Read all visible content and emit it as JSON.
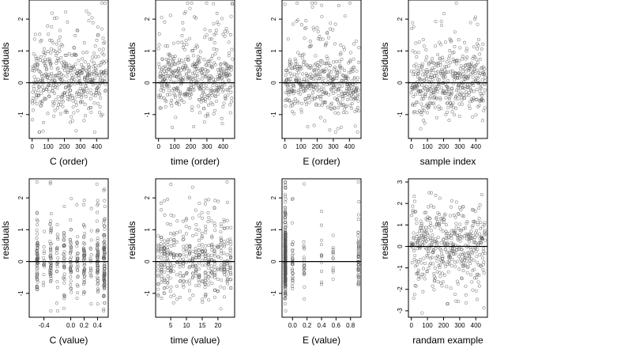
{
  "figure": {
    "background": "#ffffff",
    "point_color": "#555555",
    "line_color": "#000000"
  },
  "chart_data": [
    {
      "id": "p1",
      "type": "scatter",
      "xlabel": "C (order)",
      "ylabel": "residuals",
      "xlim": [
        -18,
        472
      ],
      "ylim": [
        -1.75,
        2.6
      ],
      "xticks": [
        0,
        100,
        200,
        300,
        400
      ],
      "xtick_labels": [
        "0",
        "100",
        "200",
        "300",
        "400"
      ],
      "yticks": [
        -1,
        0,
        1,
        2
      ],
      "ytick_labels": [
        "-1",
        "0",
        "1",
        "2"
      ],
      "hline": 0,
      "n_points": 460,
      "x_pattern": "index",
      "y_pattern": "c_order",
      "seed": 11
    },
    {
      "id": "p2",
      "type": "scatter",
      "xlabel": "time (order)",
      "ylabel": "residuals",
      "xlim": [
        -18,
        472
      ],
      "ylim": [
        -1.75,
        2.6
      ],
      "xticks": [
        0,
        100,
        200,
        300,
        400
      ],
      "xtick_labels": [
        "0",
        "100",
        "200",
        "300",
        "400"
      ],
      "yticks": [
        -1,
        0,
        1,
        2
      ],
      "ytick_labels": [
        "-1",
        "0",
        "1",
        "2"
      ],
      "hline": 0,
      "n_points": 460,
      "x_pattern": "index",
      "y_pattern": "time_order",
      "seed": 23
    },
    {
      "id": "p3",
      "type": "scatter",
      "xlabel": "E (order)",
      "ylabel": "residuals",
      "xlim": [
        -18,
        472
      ],
      "ylim": [
        -1.75,
        2.6
      ],
      "xticks": [
        0,
        100,
        200,
        300,
        400
      ],
      "xtick_labels": [
        "0",
        "100",
        "200",
        "300",
        "400"
      ],
      "yticks": [
        -1,
        0,
        1,
        2
      ],
      "ytick_labels": [
        "-1",
        "0",
        "1",
        "2"
      ],
      "hline": 0,
      "n_points": 460,
      "x_pattern": "index",
      "y_pattern": "e_order",
      "seed": 37
    },
    {
      "id": "p4",
      "type": "scatter",
      "xlabel": "sample index",
      "ylabel": "residuals",
      "xlim": [
        -18,
        472
      ],
      "ylim": [
        -1.75,
        2.6
      ],
      "xticks": [
        0,
        100,
        200,
        300,
        400
      ],
      "xtick_labels": [
        "0",
        "100",
        "200",
        "300",
        "400"
      ],
      "yticks": [
        -1,
        0,
        1,
        2
      ],
      "ytick_labels": [
        "-1",
        "0",
        "1",
        "2"
      ],
      "hline": 0,
      "n_points": 460,
      "x_pattern": "index",
      "y_pattern": "sample",
      "seed": 41
    },
    {
      "id": "p5",
      "type": "scatter",
      "xlabel": "C (value)",
      "ylabel": "residuals",
      "xlim": [
        -0.62,
        0.56
      ],
      "ylim": [
        -1.75,
        2.6
      ],
      "xticks": [
        -0.4,
        0.0,
        0.2,
        0.4
      ],
      "xtick_labels": [
        "-0.4",
        "0.0",
        "0.2",
        "0.4"
      ],
      "yticks": [
        -1,
        0,
        1,
        2
      ],
      "ytick_labels": [
        "-1",
        "0",
        "1",
        "2"
      ],
      "hline": 0,
      "n_points": 460,
      "x_pattern": "c_levels",
      "y_pattern": "generic",
      "x_levels": [
        -0.5,
        -0.4,
        -0.3,
        -0.2,
        -0.1,
        0.0,
        0.1,
        0.2,
        0.3,
        0.4,
        0.5
      ],
      "seed": 53
    },
    {
      "id": "p6",
      "type": "scatter",
      "xlabel": "time (value)",
      "ylabel": "residuals",
      "xlim": [
        0.2,
        25.3
      ],
      "ylim": [
        -1.75,
        2.6
      ],
      "xticks": [
        5,
        10,
        15,
        20
      ],
      "xtick_labels": [
        "5",
        "10",
        "15",
        "20"
      ],
      "yticks": [
        -1,
        0,
        1,
        2
      ],
      "ytick_labels": [
        "-1",
        "0",
        "1",
        "2"
      ],
      "hline": 0,
      "n_points": 460,
      "x_pattern": "t_levels",
      "y_pattern": "generic",
      "x_levels": [
        1,
        2,
        3,
        4,
        5,
        6,
        7,
        8,
        9,
        10,
        11,
        12,
        13,
        14,
        15,
        16,
        17,
        18,
        19,
        20,
        21,
        22,
        23,
        24
      ],
      "seed": 67
    },
    {
      "id": "p7",
      "type": "scatter",
      "xlabel": "E (value)",
      "ylabel": "residuals",
      "xlim": [
        -0.145,
        0.945
      ],
      "ylim": [
        -1.75,
        2.6
      ],
      "xticks": [
        0.0,
        0.2,
        0.4,
        0.6,
        0.8
      ],
      "xtick_labels": [
        "0.0",
        "0.2",
        "0.4",
        "0.6",
        "0.8"
      ],
      "yticks": [
        -1,
        0,
        1,
        2
      ],
      "ytick_labels": [
        "-1",
        "0",
        "1",
        "2"
      ],
      "hline": 0,
      "n_points": 460,
      "x_pattern": "e_levels",
      "y_pattern": "generic",
      "seed": 71
    },
    {
      "id": "p8",
      "type": "scatter",
      "xlabel": "randam example",
      "ylabel": "residuals",
      "xlim": [
        -18,
        472
      ],
      "ylim": [
        -3.3,
        3.15
      ],
      "xticks": [
        0,
        100,
        200,
        300,
        400
      ],
      "xtick_labels": [
        "0",
        "100",
        "200",
        "300",
        "400"
      ],
      "yticks": [
        -3,
        -2,
        -1,
        0,
        1,
        2,
        3
      ],
      "ytick_labels": [
        "-3",
        "-2",
        "-1",
        "0",
        "1",
        "2",
        "3"
      ],
      "hline": 0,
      "n_points": 460,
      "x_pattern": "index",
      "y_pattern": "random",
      "seed": 89
    }
  ]
}
